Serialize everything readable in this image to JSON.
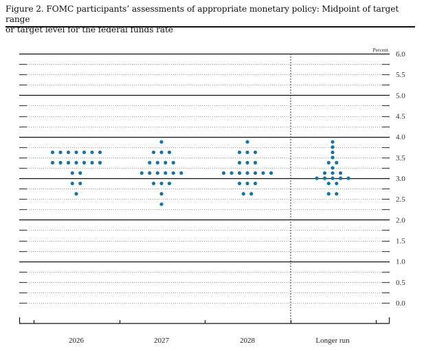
{
  "figure": {
    "title_line1": "Figure 2. FOMC participants’ assessments of appropriate monetary policy: Midpoint of target range",
    "title_line2": "or target level for the federal funds rate",
    "unit_label": "Percent"
  },
  "colors": {
    "dot": "#1474a8",
    "axis": "#111111",
    "grid_dotted": "#999999"
  },
  "chart_data": {
    "type": "scatter",
    "subtype": "dot-plot",
    "title": "FOMC participants’ assessments of appropriate monetary policy: Midpoint of target range or target level for the federal funds rate",
    "xlabel": "",
    "ylabel": "Percent",
    "ylim": [
      0.0,
      6.0
    ],
    "y_ticks": [
      "0.0",
      "0.5",
      "1.0",
      "1.5",
      "2.0",
      "2.5",
      "3.0",
      "3.5",
      "4.0",
      "4.5",
      "5.0",
      "5.5",
      "6.0"
    ],
    "y_axis_position": "right",
    "grid": "solid at whole percents, dotted at 0.25 steps",
    "categories": [
      "2026",
      "2027",
      "2028",
      "Longer run"
    ],
    "series": [
      {
        "name": "2026",
        "dots": [
          {
            "value": 3.625,
            "count": 7
          },
          {
            "value": 3.375,
            "count": 7
          },
          {
            "value": 3.125,
            "count": 2
          },
          {
            "value": 2.875,
            "count": 2
          },
          {
            "value": 2.625,
            "count": 1
          }
        ]
      },
      {
        "name": "2027",
        "dots": [
          {
            "value": 3.875,
            "count": 1
          },
          {
            "value": 3.625,
            "count": 3
          },
          {
            "value": 3.375,
            "count": 4
          },
          {
            "value": 3.125,
            "count": 6
          },
          {
            "value": 2.875,
            "count": 3
          },
          {
            "value": 2.625,
            "count": 1
          },
          {
            "value": 2.375,
            "count": 1
          }
        ]
      },
      {
        "name": "2028",
        "dots": [
          {
            "value": 3.875,
            "count": 1
          },
          {
            "value": 3.625,
            "count": 3
          },
          {
            "value": 3.375,
            "count": 3
          },
          {
            "value": 3.125,
            "count": 7
          },
          {
            "value": 2.875,
            "count": 3
          },
          {
            "value": 2.625,
            "count": 2
          }
        ]
      },
      {
        "name": "Longer run",
        "dots": [
          {
            "value": 3.875,
            "count": 1
          },
          {
            "value": 3.75,
            "count": 1
          },
          {
            "value": 3.625,
            "count": 1
          },
          {
            "value": 3.5,
            "count": 1
          },
          {
            "value": 3.375,
            "count": 2
          },
          {
            "value": 3.25,
            "count": 1
          },
          {
            "value": 3.125,
            "count": 3
          },
          {
            "value": 3.0,
            "count": 5
          },
          {
            "value": 2.875,
            "count": 2
          },
          {
            "value": 2.625,
            "count": 2
          }
        ]
      }
    ],
    "separator": "vertical dotted line between 2028 and Longer run"
  }
}
